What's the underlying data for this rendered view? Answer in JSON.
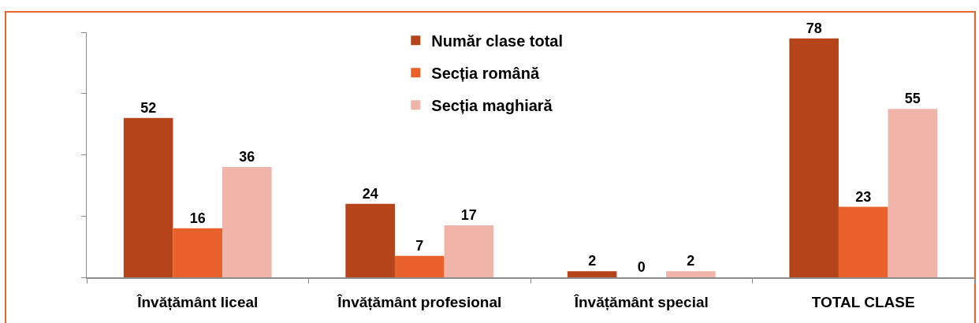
{
  "chart_data": {
    "type": "bar",
    "categories": [
      "Învățământ liceal",
      "Învățământ profesional",
      "Învățământ special",
      "TOTAL CLASE"
    ],
    "series": [
      {
        "name": "Număr clase total",
        "color": "#b5441b",
        "values": [
          52,
          24,
          2,
          78
        ]
      },
      {
        "name": "Secția română",
        "color": "#e8602a",
        "values": [
          16,
          7,
          0,
          23
        ]
      },
      {
        "name": "Secția maghiară",
        "color": "#f0b4a8",
        "values": [
          36,
          17,
          2,
          55
        ]
      }
    ],
    "ylim": [
      0,
      80
    ],
    "yticks": [
      {
        "value": 0,
        "label": null
      },
      {
        "value": 20,
        "label": null
      },
      {
        "value": 40,
        "label": null
      },
      {
        "value": 60,
        "label": null
      },
      {
        "value": 80,
        "label": null
      }
    ],
    "tick_labels": "x",
    "legend": "top",
    "data_labels": true
  }
}
